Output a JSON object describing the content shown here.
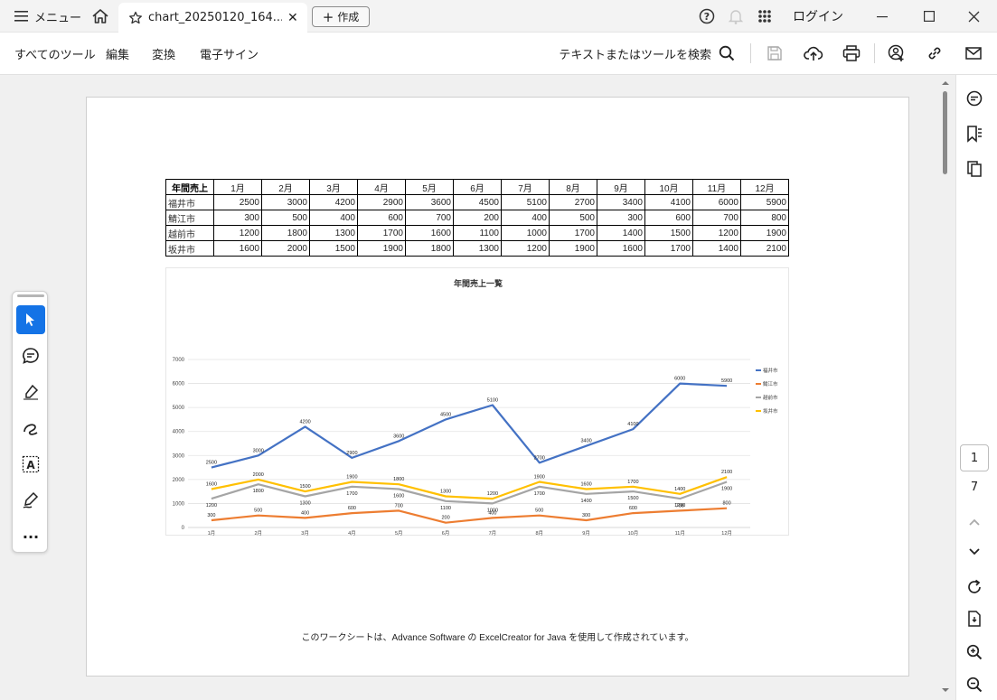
{
  "titlebar": {
    "menu_label": "メニュー",
    "tab_title": "chart_20250120_164...",
    "create_label": "作成",
    "login_label": "ログイン"
  },
  "menubar": {
    "all_tools": "すべてのツール",
    "edit": "編集",
    "convert": "変換",
    "esign": "電子サイン",
    "search_label": "テキストまたはツールを検索"
  },
  "document": {
    "footer_note": "このワークシートは、Advance Software の ExcelCreator for Java を使用して作成されています。",
    "table": {
      "corner": "年間売上",
      "months": [
        "1月",
        "2月",
        "3月",
        "4月",
        "5月",
        "6月",
        "7月",
        "8月",
        "9月",
        "10月",
        "11月",
        "12月"
      ],
      "rows": [
        {
          "name": "福井市",
          "values": [
            "2500",
            "3000",
            "4200",
            "2900",
            "3600",
            "4500",
            "5100",
            "2700",
            "3400",
            "4100",
            "6000",
            "5900"
          ]
        },
        {
          "name": "鯖江市",
          "values": [
            "300",
            "500",
            "400",
            "600",
            "700",
            "200",
            "400",
            "500",
            "300",
            "600",
            "700",
            "800"
          ]
        },
        {
          "name": "越前市",
          "values": [
            "1200",
            "1800",
            "1300",
            "1700",
            "1600",
            "1100",
            "1000",
            "1700",
            "1400",
            "1500",
            "1200",
            "1900"
          ]
        },
        {
          "name": "坂井市",
          "values": [
            "1600",
            "2000",
            "1500",
            "1900",
            "1800",
            "1300",
            "1200",
            "1900",
            "1600",
            "1700",
            "1400",
            "2100"
          ]
        }
      ]
    }
  },
  "chart_data": {
    "type": "line",
    "title": "年間売上一覧",
    "categories": [
      "1月",
      "2月",
      "3月",
      "4月",
      "5月",
      "6月",
      "7月",
      "8月",
      "9月",
      "10月",
      "11月",
      "12月"
    ],
    "ylim": [
      0,
      7000
    ],
    "yticks": [
      "0",
      "1000",
      "2000",
      "3000",
      "4000",
      "5000",
      "6000",
      "7000"
    ],
    "grid": true,
    "legend_position": "right",
    "series": [
      {
        "name": "福井市",
        "color": "#4472c4",
        "values": [
          2500,
          3000,
          4200,
          2900,
          3600,
          4500,
          5100,
          2700,
          3400,
          4100,
          6000,
          5900
        ]
      },
      {
        "name": "鯖江市",
        "color": "#ed7d31",
        "values": [
          300,
          500,
          400,
          600,
          700,
          200,
          400,
          500,
          300,
          600,
          700,
          800
        ]
      },
      {
        "name": "越前市",
        "color": "#a5a5a5",
        "values": [
          1200,
          1800,
          1300,
          1700,
          1600,
          1100,
          1000,
          1700,
          1400,
          1500,
          1200,
          1900
        ]
      },
      {
        "name": "坂井市",
        "color": "#ffc000",
        "values": [
          1600,
          2000,
          1500,
          1900,
          1800,
          1300,
          1200,
          1900,
          1600,
          1700,
          1400,
          2100
        ]
      }
    ]
  },
  "navigation": {
    "current_page": "1",
    "total_pages": "7"
  },
  "icons": [
    "hamburger-icon",
    "home-icon",
    "star-icon",
    "close-icon",
    "plus-icon",
    "help-icon",
    "bell-icon",
    "apps-grid-icon",
    "minimize-icon",
    "maximize-icon",
    "window-close-icon",
    "search-icon",
    "save-icon",
    "cloud-upload-icon",
    "print-icon",
    "share-user-icon",
    "link-icon",
    "mail-icon",
    "comment-panel-icon",
    "bookmark-icon",
    "pages-icon",
    "select-cursor-icon",
    "comment-icon",
    "highlighter-icon",
    "draw-icon",
    "text-select-icon",
    "sign-icon",
    "more-icon",
    "chevron-up-icon",
    "chevron-down-icon",
    "refresh-icon",
    "file-export-icon",
    "zoom-in-icon",
    "zoom-out-icon"
  ]
}
